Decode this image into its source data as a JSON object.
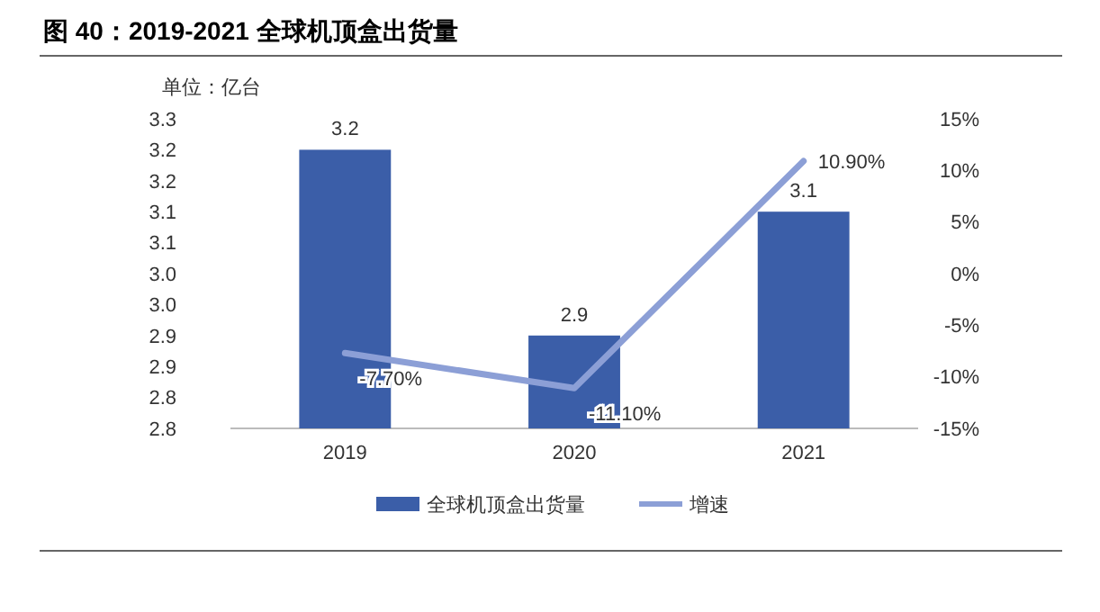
{
  "chart_data": {
    "type": "bar",
    "title": "图 40：2019-2021 全球机顶盒出货量",
    "annotations": [
      "单位：亿台"
    ],
    "categories": [
      "2019",
      "2020",
      "2021"
    ],
    "series": [
      {
        "name": "全球机顶盒出货量",
        "color": "#3b5ea8",
        "values": [
          3.25,
          2.95,
          3.15
        ],
        "value_labels": [
          "3.2",
          "2.9",
          "3.1"
        ]
      },
      {
        "name": "增速",
        "type": "line",
        "axis": "y2",
        "color": "#8c9fd6",
        "values": [
          -7.7,
          -11.1,
          10.9
        ],
        "value_labels": [
          "-7.70%",
          "-11.10%",
          "10.90%"
        ]
      }
    ],
    "ylim": [
      2.8,
      3.3
    ],
    "yticks": [
      {
        "value": 2.8,
        "label": "2.8"
      },
      {
        "value": 2.85,
        "label": "2.8"
      },
      {
        "value": 2.9,
        "label": "2.9"
      },
      {
        "value": 2.95,
        "label": "2.9"
      },
      {
        "value": 3.0,
        "label": "3.0"
      },
      {
        "value": 3.05,
        "label": "3.0"
      },
      {
        "value": 3.1,
        "label": "3.1"
      },
      {
        "value": 3.15,
        "label": "3.1"
      },
      {
        "value": 3.2,
        "label": "3.2"
      },
      {
        "value": 3.25,
        "label": "3.2"
      },
      {
        "value": 3.3,
        "label": "3.3"
      }
    ],
    "y2lim": [
      -15,
      15
    ],
    "y2ticks": [
      {
        "value": -15,
        "label": "-15%"
      },
      {
        "value": -10,
        "label": "-10%"
      },
      {
        "value": -5,
        "label": "-5%"
      },
      {
        "value": 0,
        "label": "0%"
      },
      {
        "value": 5,
        "label": "5%"
      },
      {
        "value": 10,
        "label": "10%"
      },
      {
        "value": 15,
        "label": "15%"
      }
    ],
    "legend": "bottom"
  }
}
